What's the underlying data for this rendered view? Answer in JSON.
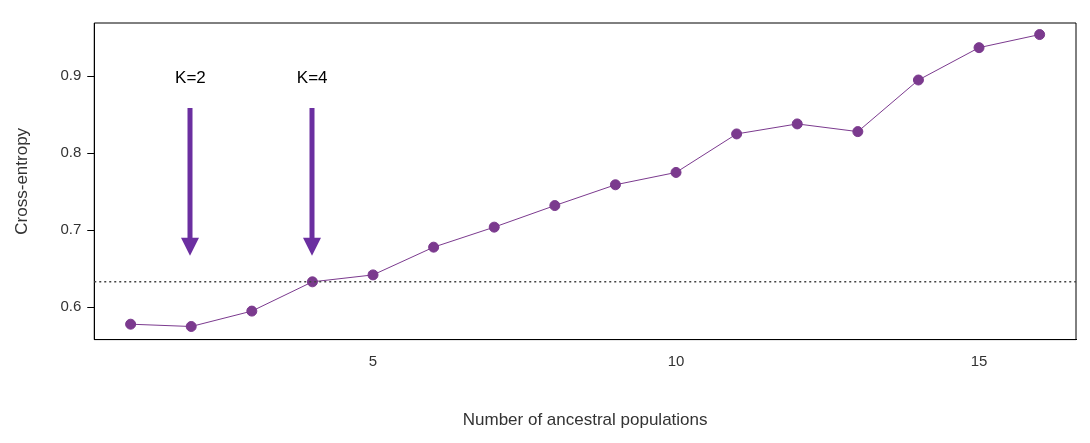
{
  "chart_data": {
    "type": "line",
    "xlabel": "Number of ancestral populations",
    "ylabel": "Cross-entropy",
    "x": [
      1,
      2,
      3,
      4,
      5,
      6,
      7,
      8,
      9,
      10,
      11,
      12,
      13,
      14,
      15,
      16
    ],
    "series": [
      {
        "color": "#7b3a8e",
        "values": [
          0.578,
          0.575,
          0.595,
          0.633,
          0.642,
          0.678,
          0.704,
          0.732,
          0.759,
          0.775,
          0.825,
          0.838,
          0.828,
          0.895,
          0.937,
          0.954
        ]
      }
    ],
    "xlim": [
      0.4,
      16.6
    ],
    "xticks": [
      5,
      10,
      15
    ],
    "ylim": [
      0.558,
      0.969
    ],
    "yticks": [
      0.6,
      0.7,
      0.8,
      0.9
    ],
    "grid": false,
    "legend": false,
    "marker": "circle",
    "line_style": "solid",
    "ref_lines": [
      {
        "axis": "y",
        "value": 0.633,
        "color": "#444444",
        "line_style": "dotted"
      }
    ],
    "annotations": [
      "K=2",
      "K=4"
    ]
  }
}
